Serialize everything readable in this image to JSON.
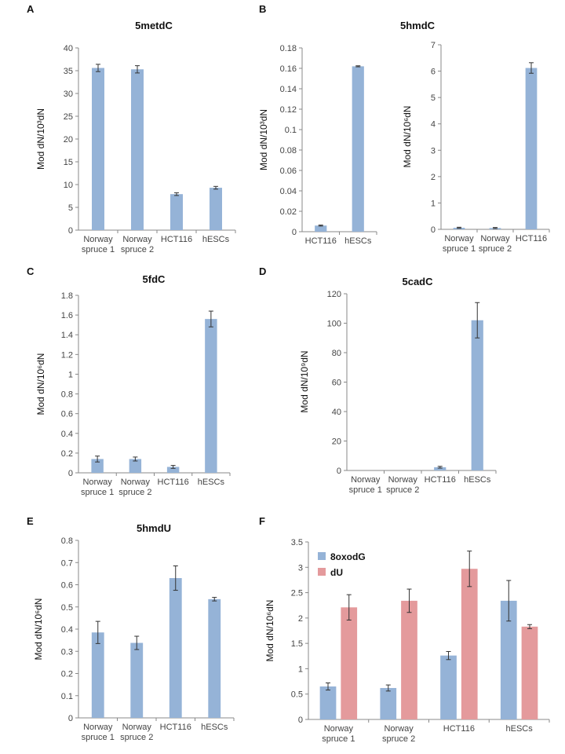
{
  "panel_letters": [
    "A",
    "B",
    "C",
    "D",
    "E",
    "F"
  ],
  "colors": {
    "bar_blue": "#95b3d7",
    "bar_red": "#e49a9c",
    "axis": "#888888",
    "error": "#333333"
  },
  "chart_data": [
    {
      "id": "A",
      "type": "bar",
      "title": "5metdC",
      "ylabel": "Mod dN/10³dN",
      "categories": [
        "Norway spruce 1",
        "Norway spruce 2",
        "HCT116",
        "hESCs"
      ],
      "series": [
        {
          "name": "5metdC",
          "values": [
            35.6,
            35.3,
            7.9,
            9.3
          ],
          "errors": [
            0.8,
            0.8,
            0.3,
            0.3
          ]
        }
      ],
      "ylim": [
        0,
        40
      ],
      "yticks": [
        0,
        5,
        10,
        15,
        20,
        25,
        30,
        35,
        40
      ]
    },
    {
      "id": "B1",
      "type": "bar",
      "title": "5hmdC",
      "ylabel": "Mod dN/10³dN",
      "categories": [
        "HCT116",
        "hESCs"
      ],
      "series": [
        {
          "name": "5hmdC",
          "values": [
            0.006,
            0.162
          ],
          "errors": [
            0.0005,
            0.0005
          ]
        }
      ],
      "ylim": [
        0,
        0.18
      ],
      "yticks": [
        0,
        0.02,
        0.04,
        0.06,
        0.08,
        0.1,
        0.12,
        0.14,
        0.16,
        0.18
      ]
    },
    {
      "id": "B2",
      "type": "bar",
      "title": "",
      "ylabel": "Mod dN/10⁶dN",
      "categories": [
        "Norway spruce 1",
        "Norway spruce 2",
        "HCT116"
      ],
      "series": [
        {
          "name": "5hmdC",
          "values": [
            0.06,
            0.05,
            6.12
          ],
          "errors": [
            0.02,
            0.02,
            0.2
          ]
        }
      ],
      "ylim": [
        0,
        7
      ],
      "yticks": [
        0,
        1,
        2,
        3,
        4,
        5,
        6,
        7
      ]
    },
    {
      "id": "C",
      "type": "bar",
      "title": "5fdC",
      "ylabel": "Mod dN/10⁶dN",
      "categories": [
        "Norway spruce 1",
        "Norway spruce 2",
        "HCT116",
        "hESCs"
      ],
      "series": [
        {
          "name": "5fdC",
          "values": [
            0.14,
            0.14,
            0.06,
            1.56
          ],
          "errors": [
            0.03,
            0.02,
            0.015,
            0.08
          ]
        }
      ],
      "ylim": [
        0,
        1.8
      ],
      "yticks": [
        0,
        0.2,
        0.4,
        0.6,
        0.8,
        1,
        1.2,
        1.4,
        1.6,
        1.8
      ]
    },
    {
      "id": "D",
      "type": "bar",
      "title": "5cadC",
      "ylabel": "Mod dN/10⁹dN",
      "categories": [
        "Norway spruce 1",
        "Norway spruce 2",
        "HCT116",
        "hESCs"
      ],
      "series": [
        {
          "name": "5cadC",
          "values": [
            0,
            0,
            2.2,
            102
          ],
          "errors": [
            0,
            0,
            0.6,
            12
          ]
        }
      ],
      "ylim": [
        0,
        120
      ],
      "yticks": [
        0,
        20,
        40,
        60,
        80,
        100,
        120
      ]
    },
    {
      "id": "E",
      "type": "bar",
      "title": "5hmdU",
      "ylabel": "Mod dN/10⁶dN",
      "categories": [
        "Norway spruce 1",
        "Norway spruce 2",
        "HCT116",
        "hESCs"
      ],
      "series": [
        {
          "name": "5hmdU",
          "values": [
            0.385,
            0.338,
            0.63,
            0.535
          ],
          "errors": [
            0.05,
            0.03,
            0.055,
            0.008
          ]
        }
      ],
      "ylim": [
        0,
        0.8
      ],
      "yticks": [
        0,
        0.1,
        0.2,
        0.3,
        0.4,
        0.5,
        0.6,
        0.7,
        0.8
      ]
    },
    {
      "id": "F",
      "type": "bar",
      "title": "",
      "ylabel": "Mod dN/10⁶dN",
      "legend": [
        "8oxodG",
        "dU"
      ],
      "categories": [
        "Norway spruce 1",
        "Norway spruce 2",
        "HCT116",
        "hESCs"
      ],
      "series": [
        {
          "name": "8oxodG",
          "values": [
            0.65,
            0.62,
            1.26,
            2.34
          ],
          "errors": [
            0.07,
            0.06,
            0.08,
            0.4
          ]
        },
        {
          "name": "dU",
          "values": [
            2.21,
            2.34,
            2.97,
            1.83
          ],
          "errors": [
            0.25,
            0.23,
            0.35,
            0.04
          ]
        }
      ],
      "ylim": [
        0,
        3.5
      ],
      "yticks": [
        0,
        0.5,
        1,
        1.5,
        2,
        2.5,
        3,
        3.5
      ]
    }
  ]
}
